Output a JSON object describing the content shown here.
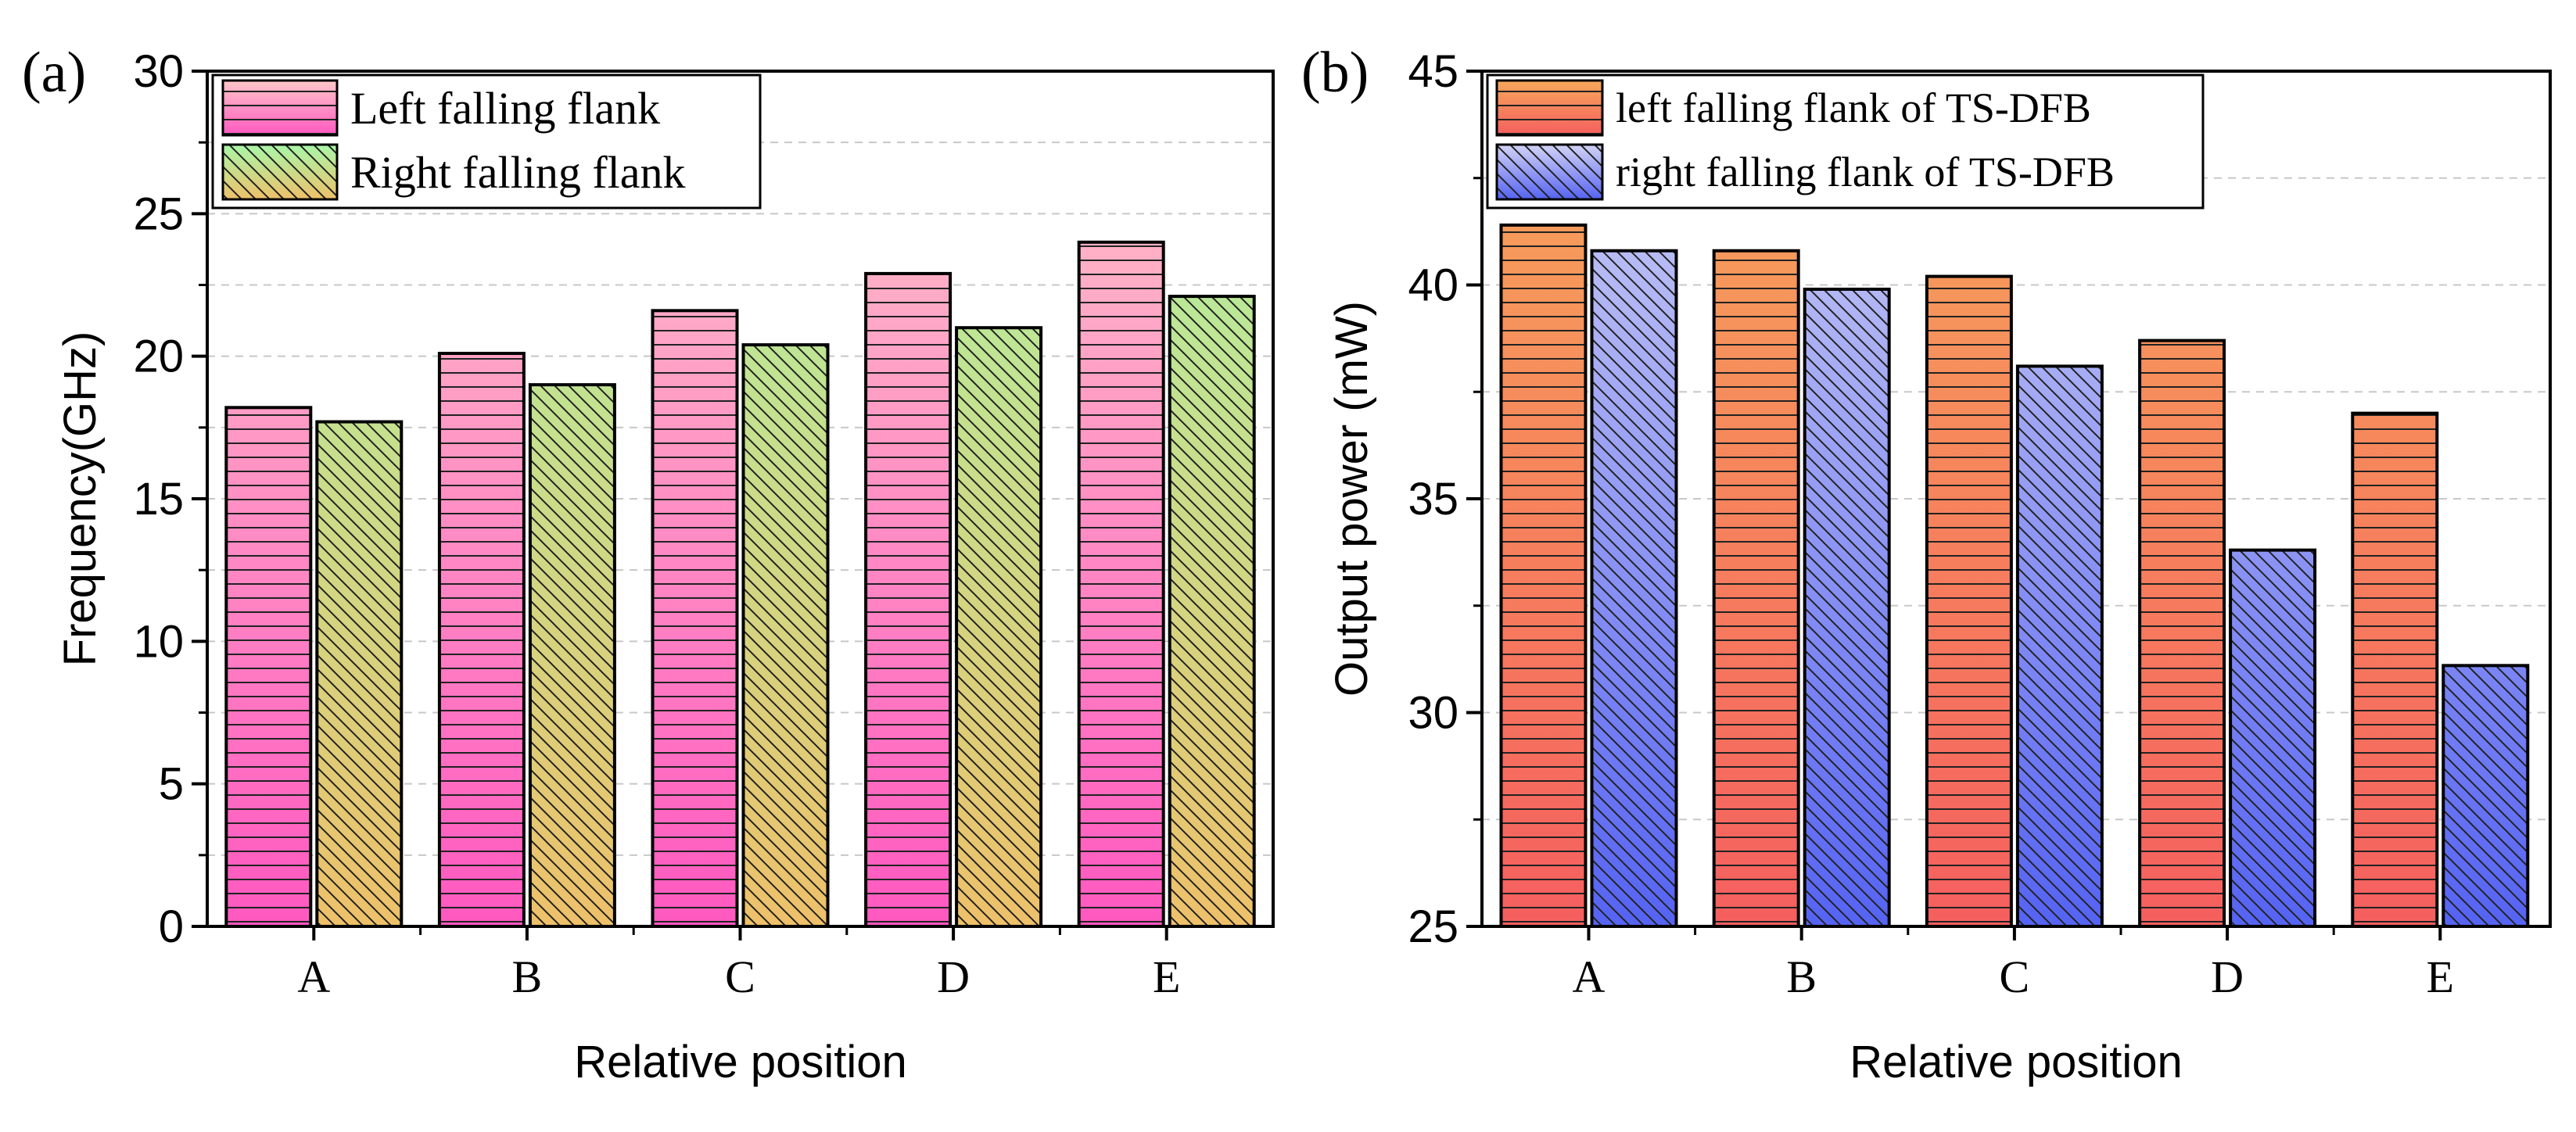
{
  "chart_data": [
    {
      "panel_label": "(a)",
      "type": "bar",
      "title": "",
      "xlabel": "Relative position",
      "ylabel": "Frequency(GHz)",
      "categories": [
        "A",
        "B",
        "C",
        "D",
        "E"
      ],
      "ylim": [
        0,
        30
      ],
      "yticks": [
        0,
        5,
        10,
        15,
        20,
        25,
        30
      ],
      "ytick_labels": [
        "0",
        "5",
        "10",
        "15",
        "20",
        "25",
        "30"
      ],
      "grid": true,
      "legend_position": "top-left",
      "series": [
        {
          "name": "Left falling flank",
          "values": [
            18.2,
            20.1,
            21.6,
            22.9,
            24.0
          ],
          "color_top": "#ffc8c8",
          "color_bottom": "#ff58c0",
          "pattern": "horizontal-lines"
        },
        {
          "name": "Right falling flank",
          "values": [
            17.7,
            19.0,
            20.4,
            21.0,
            22.1
          ],
          "color_top": "#a8f7a8",
          "color_bottom": "#eec06a",
          "pattern": "diagonal-lines"
        }
      ]
    },
    {
      "panel_label": "(b)",
      "type": "bar",
      "title": "",
      "xlabel": "Relative position",
      "ylabel": "Output power (mW)",
      "categories": [
        "A",
        "B",
        "C",
        "D",
        "E"
      ],
      "ylim": [
        25,
        45
      ],
      "yticks": [
        25,
        30,
        35,
        40,
        45
      ],
      "ytick_labels": [
        "25",
        "30",
        "35",
        "40",
        "45"
      ],
      "grid": true,
      "legend_position": "top-left",
      "series": [
        {
          "name": "left falling flank of TS-DFB",
          "values": [
            41.4,
            40.8,
            40.2,
            38.7,
            37.0
          ],
          "color_top": "#f7a85a",
          "color_bottom": "#f55f5f",
          "pattern": "horizontal-lines"
        },
        {
          "name": "right falling flank of TS-DFB",
          "values": [
            40.8,
            39.9,
            38.1,
            33.8,
            31.1
          ],
          "color_top": "#d2d3f5",
          "color_bottom": "#5563f3",
          "pattern": "diagonal-lines"
        }
      ]
    }
  ]
}
